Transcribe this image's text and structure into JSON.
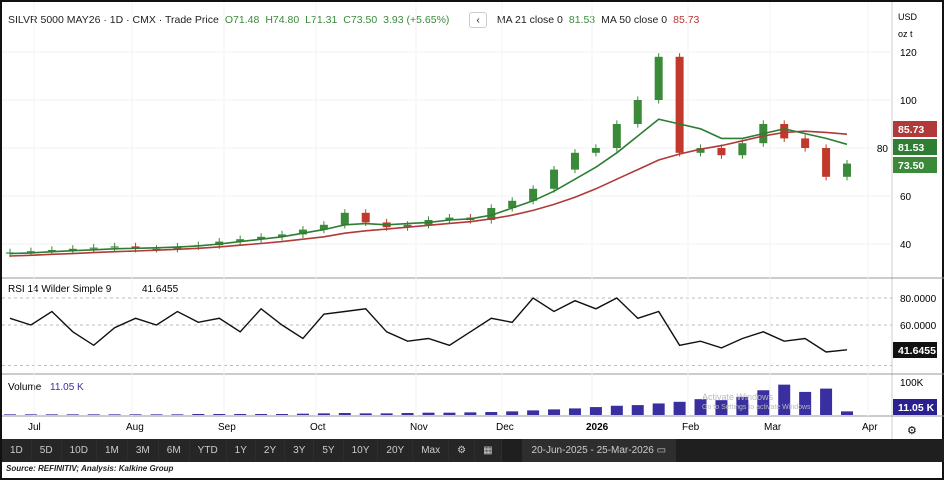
{
  "header": {
    "symbol": "SILVR 5000 MAY26 · 1D · CMX · Trade Price",
    "open": "O71.48",
    "high": "H74.80",
    "low": "L71.31",
    "close": "C73.50",
    "change": "3.93 (+5.65%)",
    "back": "‹",
    "ma21_label": "MA 21 close 0",
    "ma21_value": "81.53",
    "ma50_label": "MA 50 close 0",
    "ma50_value": "85.73"
  },
  "axis": {
    "currency": "USD",
    "unit": "oz t"
  },
  "toolbar": {
    "ranges": [
      "1D",
      "5D",
      "10D",
      "1M",
      "3M",
      "6M",
      "YTD",
      "1Y",
      "2Y",
      "3Y",
      "5Y",
      "10Y",
      "20Y",
      "Max"
    ],
    "date_range": "20-Jun-2025  -  25-Mar-2026"
  },
  "source": "Source: REFINITIV; Analysis: Kalkine Group",
  "watermark": {
    "title": "Activate Windows",
    "sub": "Go to Settings to activate Windows."
  },
  "colors": {
    "up": "#3a8a3a",
    "down": "#c0392b",
    "ma21": "#2e7d32",
    "ma50": "#b03a3a",
    "volume": "#3a2fa0",
    "rsi": "#111"
  },
  "chart_data": [
    {
      "type": "candlestick",
      "title": "SILVR 5000 MAY26 Price",
      "ylim": [
        30,
        125
      ],
      "yticks": [
        40,
        60,
        80,
        100,
        120
      ],
      "xticks": [
        "Jul",
        "Aug",
        "Sep",
        "Oct",
        "Nov",
        "Dec",
        "2026",
        "Feb",
        "Mar",
        "Apr"
      ],
      "close": [
        36.5,
        37,
        37.5,
        38,
        38.5,
        39,
        38,
        38,
        39,
        39.5,
        41,
        42,
        43,
        44,
        46,
        48,
        53,
        49,
        47,
        48,
        50,
        51,
        50,
        55,
        58,
        63,
        71,
        78,
        80,
        90,
        100,
        118,
        78,
        80,
        77,
        82,
        90,
        84,
        80,
        68,
        73.5
      ],
      "ma21": [
        36,
        36.3,
        36.8,
        37.2,
        37.6,
        38,
        38.2,
        38.4,
        38.7,
        39.2,
        40,
        41,
        42,
        43,
        44.5,
        46,
        48,
        48.5,
        48,
        48.5,
        49,
        50,
        50.5,
        52,
        55,
        58,
        62,
        67,
        72,
        78,
        85,
        92,
        90,
        88,
        84,
        84,
        86,
        88,
        86,
        84,
        81.53
      ],
      "ma50": [
        35,
        35.3,
        35.7,
        36,
        36.4,
        36.8,
        37.1,
        37.4,
        37.8,
        38.2,
        38.8,
        39.5,
        40.2,
        41,
        42,
        43,
        44.5,
        45.5,
        46.2,
        47,
        47.8,
        48.6,
        49.3,
        50.5,
        52,
        54,
        56.5,
        59.5,
        63,
        67,
        71,
        75,
        77.5,
        79.5,
        81,
        83,
        85,
        86.5,
        87,
        86.5,
        85.73
      ],
      "labels": {
        "last": "73.50",
        "ma21": "81.53",
        "ma50": "85.73"
      }
    },
    {
      "type": "line",
      "title": "RSI 14 Wilder Simple 9",
      "value": "41.6455",
      "ylim": [
        25,
        90
      ],
      "yticks": [
        "80.0000",
        "60.0000"
      ],
      "values": [
        65,
        60,
        70,
        55,
        45,
        58,
        65,
        60,
        70,
        62,
        65,
        55,
        72,
        60,
        50,
        68,
        70,
        72,
        55,
        48,
        50,
        45,
        55,
        65,
        62,
        80,
        70,
        78,
        72,
        80,
        65,
        70,
        45,
        48,
        43,
        50,
        55,
        48,
        50,
        40,
        41.65
      ]
    },
    {
      "type": "bar",
      "title": "Volume",
      "value": "11.05 K",
      "ytick": "100K",
      "values": [
        2,
        2,
        2,
        2,
        2,
        2,
        2,
        2,
        2,
        3,
        3,
        3,
        3,
        3,
        4,
        5,
        6,
        5,
        5,
        6,
        7,
        7,
        8,
        9,
        11,
        14,
        17,
        20,
        24,
        28,
        30,
        35,
        40,
        48,
        45,
        55,
        75,
        92,
        70,
        80,
        11.05
      ]
    }
  ]
}
